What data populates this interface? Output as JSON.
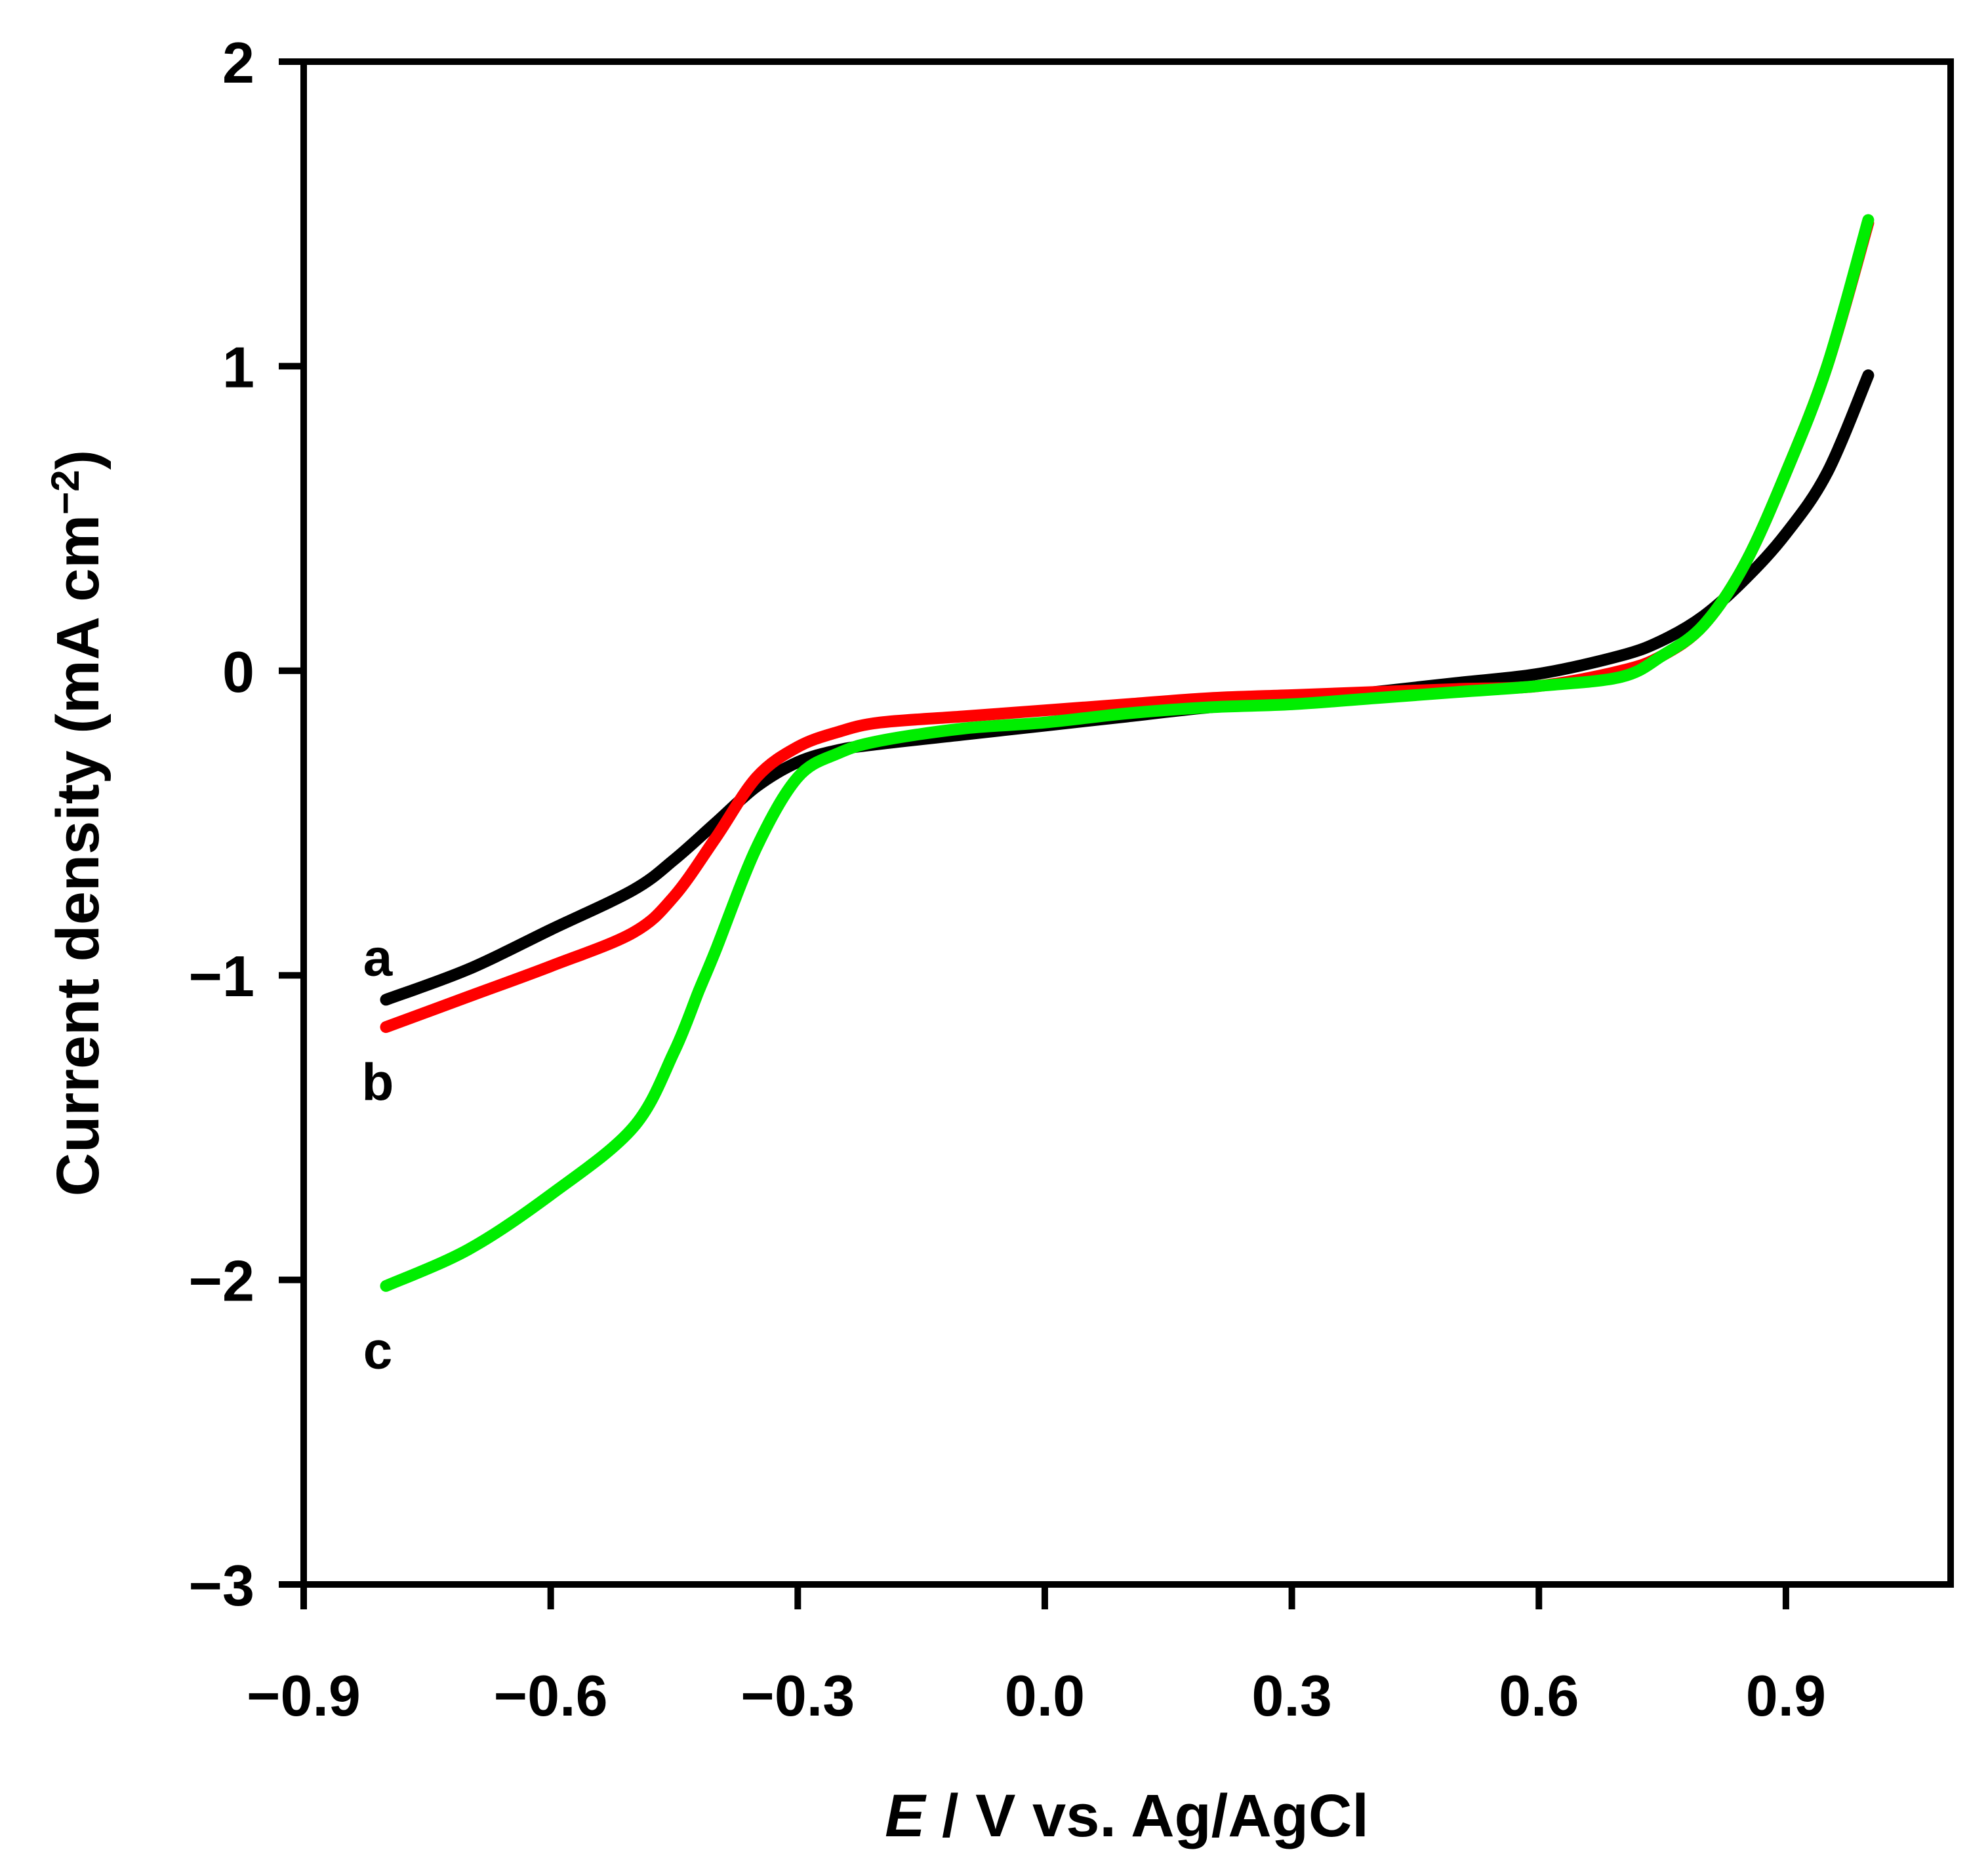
{
  "chart_data": {
    "type": "line",
    "title": "",
    "xlabel_italic": "E",
    "xlabel_rest": " / V vs. Ag/AgCl",
    "ylabel_main": "Current density (mA cm",
    "ylabel_sup": "−2",
    "ylabel_close": ")",
    "xlim": [
      -0.9,
      1.1
    ],
    "ylim": [
      -3,
      2
    ],
    "xticks": [
      -0.9,
      -0.6,
      -0.3,
      0.0,
      0.3,
      0.6,
      0.9
    ],
    "xtick_labels": [
      "−0.9",
      "−0.6",
      "−0.3",
      "0.0",
      "0.3",
      "0.6",
      "0.9"
    ],
    "yticks": [
      2,
      1,
      0,
      -1,
      -2,
      -3
    ],
    "ytick_labels": [
      "2",
      "1",
      "0",
      "−1",
      "−2",
      "−3"
    ],
    "grid": false,
    "series": [
      {
        "name": "a",
        "color": "#000000",
        "x": [
          -0.8,
          -0.7,
          -0.6,
          -0.5,
          -0.45,
          -0.4,
          -0.35,
          -0.3,
          -0.25,
          -0.2,
          -0.1,
          0.0,
          0.1,
          0.2,
          0.3,
          0.4,
          0.5,
          0.6,
          0.7,
          0.75,
          0.8,
          0.85,
          0.9,
          0.95,
          1.0
        ],
        "y": [
          -1.08,
          -0.98,
          -0.85,
          -0.72,
          -0.62,
          -0.5,
          -0.38,
          -0.3,
          -0.26,
          -0.24,
          -0.21,
          -0.18,
          -0.15,
          -0.12,
          -0.1,
          -0.07,
          -0.04,
          -0.01,
          0.05,
          0.1,
          0.18,
          0.3,
          0.45,
          0.65,
          0.97
        ]
      },
      {
        "name": "b",
        "color": "#ff0000",
        "x": [
          -0.8,
          -0.7,
          -0.6,
          -0.5,
          -0.45,
          -0.4,
          -0.35,
          -0.3,
          -0.25,
          -0.2,
          -0.1,
          0.0,
          0.1,
          0.2,
          0.3,
          0.4,
          0.5,
          0.6,
          0.7,
          0.75,
          0.8,
          0.85,
          0.9,
          0.95,
          1.0
        ],
        "y": [
          -1.17,
          -1.07,
          -0.97,
          -0.86,
          -0.74,
          -0.55,
          -0.35,
          -0.25,
          -0.2,
          -0.17,
          -0.15,
          -0.13,
          -0.11,
          -0.09,
          -0.08,
          -0.07,
          -0.06,
          -0.05,
          0.0,
          0.05,
          0.15,
          0.35,
          0.65,
          1.0,
          1.47
        ]
      },
      {
        "name": "c",
        "color": "#00ee00",
        "x": [
          -0.8,
          -0.7,
          -0.6,
          -0.5,
          -0.45,
          -0.42,
          -0.4,
          -0.35,
          -0.3,
          -0.25,
          -0.2,
          -0.1,
          0.0,
          0.1,
          0.2,
          0.3,
          0.4,
          0.5,
          0.6,
          0.7,
          0.75,
          0.8,
          0.85,
          0.9,
          0.95,
          1.0
        ],
        "y": [
          -2.02,
          -1.9,
          -1.72,
          -1.5,
          -1.25,
          -1.05,
          -0.92,
          -0.58,
          -0.35,
          -0.27,
          -0.23,
          -0.19,
          -0.17,
          -0.14,
          -0.12,
          -0.11,
          -0.09,
          -0.07,
          -0.05,
          -0.02,
          0.05,
          0.15,
          0.35,
          0.65,
          1.0,
          1.48
        ]
      }
    ],
    "curve_labels": [
      {
        "text": "a",
        "x": -0.81,
        "y": -0.94
      },
      {
        "text": "b",
        "x": -0.81,
        "y": -1.35
      },
      {
        "text": "c",
        "x": -0.81,
        "y": -2.23
      }
    ]
  }
}
